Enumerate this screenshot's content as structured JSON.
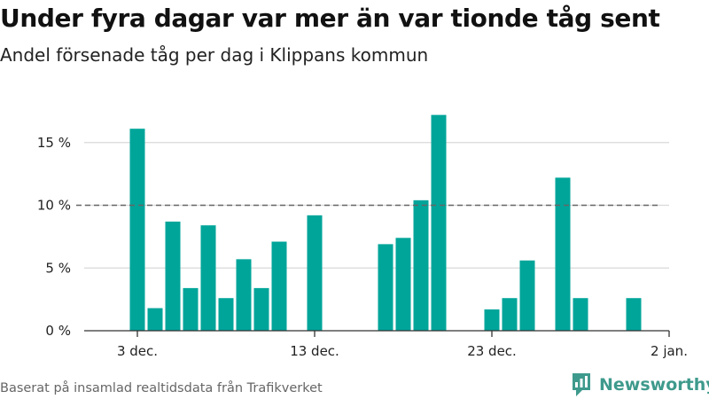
{
  "header": {
    "title": "Under fyra dagar var mer än var tionde tåg sent",
    "subtitle": "Andel försenade tåg per dag i Klippans kommun"
  },
  "footer": {
    "source": "Baserat på insamlad realtidsdata från Trafikverket",
    "brand": "Newsworthy"
  },
  "colors": {
    "bar": "#00a59a",
    "grid": "#d9d9d9",
    "axis": "#333333",
    "threshold": "#666666",
    "brand": "#3e9a8c"
  },
  "chart_data": {
    "type": "bar",
    "title": "Under fyra dagar var mer än var tionde tåg sent",
    "subtitle": "Andel försenade tåg per dag i Klippans kommun",
    "x": [
      "2023-12-03",
      "2023-12-04",
      "2023-12-05",
      "2023-12-06",
      "2023-12-07",
      "2023-12-08",
      "2023-12-09",
      "2023-12-10",
      "2023-12-11",
      "2023-12-12",
      "2023-12-13",
      "2023-12-14",
      "2023-12-15",
      "2023-12-16",
      "2023-12-17",
      "2023-12-18",
      "2023-12-19",
      "2023-12-20",
      "2023-12-21",
      "2023-12-22",
      "2023-12-23",
      "2023-12-24",
      "2023-12-25",
      "2023-12-26",
      "2023-12-27",
      "2023-12-28",
      "2023-12-29",
      "2023-12-30",
      "2023-12-31",
      "2024-01-01"
    ],
    "values": [
      16.1,
      1.8,
      8.7,
      3.4,
      8.4,
      2.6,
      5.7,
      3.4,
      7.1,
      0,
      9.2,
      0,
      0,
      0,
      6.9,
      7.4,
      10.4,
      17.2,
      0,
      0,
      1.7,
      2.6,
      5.6,
      0,
      12.2,
      2.6,
      0,
      0,
      2.6,
      0
    ],
    "xlim": [
      "2023-11-30",
      "2024-01-02"
    ],
    "ylim": [
      0,
      18
    ],
    "yticks": [
      0,
      5,
      10,
      15
    ],
    "ytick_labels": [
      "0 %",
      "5 %",
      "10 %",
      "15 %"
    ],
    "xticks": [
      "2023-12-03",
      "2023-12-13",
      "2023-12-23",
      "2024-01-02"
    ],
    "xtick_labels": [
      "3 dec.",
      "13 dec.",
      "23 dec.",
      "2 jan."
    ],
    "reference_line": {
      "value": 10,
      "style": "dashed",
      "from": "2023-11-30",
      "to": "2024-01-01"
    },
    "grid": true
  }
}
